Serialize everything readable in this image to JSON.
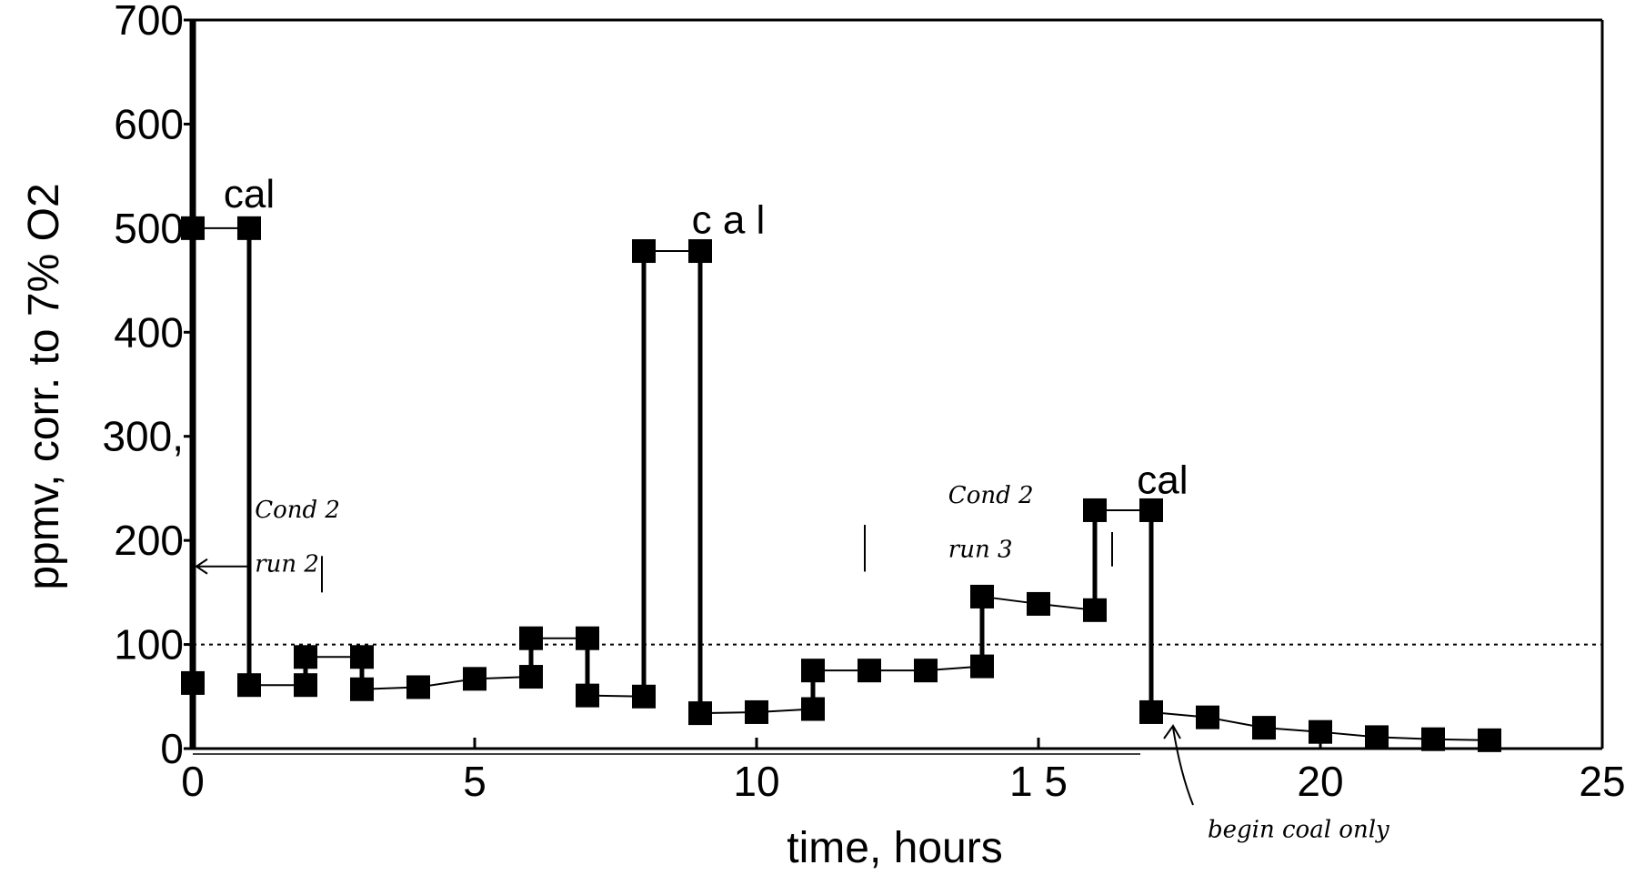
{
  "chart_data": {
    "type": "line",
    "xlabel": "time, hours",
    "ylabel": "ppmv, corr. to 7% O2",
    "xlim": [
      0,
      25
    ],
    "ylim": [
      0,
      700
    ],
    "x_ticks": [
      0,
      5,
      10,
      15,
      20,
      25
    ],
    "x_tick_labels": [
      "0",
      "5",
      "10",
      "1 5",
      "20",
      "25"
    ],
    "y_ticks": [
      0,
      100,
      200,
      300,
      400,
      500,
      600,
      700
    ],
    "y_tick_labels": [
      "0",
      "100",
      "200",
      "300,",
      "400",
      "500",
      "600",
      "700"
    ],
    "reference_line": {
      "y": 100,
      "style": "dotted"
    },
    "grid": false,
    "legend": "none",
    "series": [
      {
        "values": [
          {
            "x": 0,
            "y": 63
          },
          {
            "x": 0,
            "y": 500
          },
          {
            "x": 1,
            "y": 500
          },
          {
            "x": 1,
            "y": 61
          },
          {
            "x": 2,
            "y": 61
          },
          {
            "x": 2,
            "y": 88
          },
          {
            "x": 3,
            "y": 88
          },
          {
            "x": 3,
            "y": 57
          },
          {
            "x": 4,
            "y": 59
          },
          {
            "x": 5,
            "y": 67
          },
          {
            "x": 6,
            "y": 69
          },
          {
            "x": 6,
            "y": 106
          },
          {
            "x": 7,
            "y": 106
          },
          {
            "x": 7,
            "y": 51
          },
          {
            "x": 8,
            "y": 50
          },
          {
            "x": 8,
            "y": 478
          },
          {
            "x": 9,
            "y": 478
          },
          {
            "x": 9,
            "y": 34
          },
          {
            "x": 10,
            "y": 35
          },
          {
            "x": 11,
            "y": 38
          },
          {
            "x": 11,
            "y": 75
          },
          {
            "x": 12,
            "y": 75
          },
          {
            "x": 13,
            "y": 75
          },
          {
            "x": 14,
            "y": 79
          },
          {
            "x": 14,
            "y": 146
          },
          {
            "x": 15,
            "y": 139
          },
          {
            "x": 16,
            "y": 133
          },
          {
            "x": 16,
            "y": 229
          },
          {
            "x": 17,
            "y": 229
          },
          {
            "x": 17,
            "y": 35
          },
          {
            "x": 18,
            "y": 30
          },
          {
            "x": 19,
            "y": 20
          },
          {
            "x": 20,
            "y": 16
          },
          {
            "x": 21,
            "y": 11
          },
          {
            "x": 22,
            "y": 9
          },
          {
            "x": 23,
            "y": 8
          }
        ]
      }
    ],
    "annotations": [
      {
        "text": "cal",
        "x": 1.0,
        "y": 520
      },
      {
        "text": "c a l",
        "x": 9.5,
        "y": 495
      },
      {
        "text": "cal",
        "x": 17.2,
        "y": 245
      },
      {
        "text": "Cond 2",
        "x": 1.1,
        "y": 222
      },
      {
        "text": "run 2",
        "x": 1.1,
        "y": 170
      },
      {
        "text": "Cond 2",
        "x": 13.4,
        "y": 236
      },
      {
        "text": "run 3",
        "x": 13.4,
        "y": 184
      },
      {
        "text": "begin coal only",
        "x": 18.0,
        "y": -85
      }
    ]
  }
}
